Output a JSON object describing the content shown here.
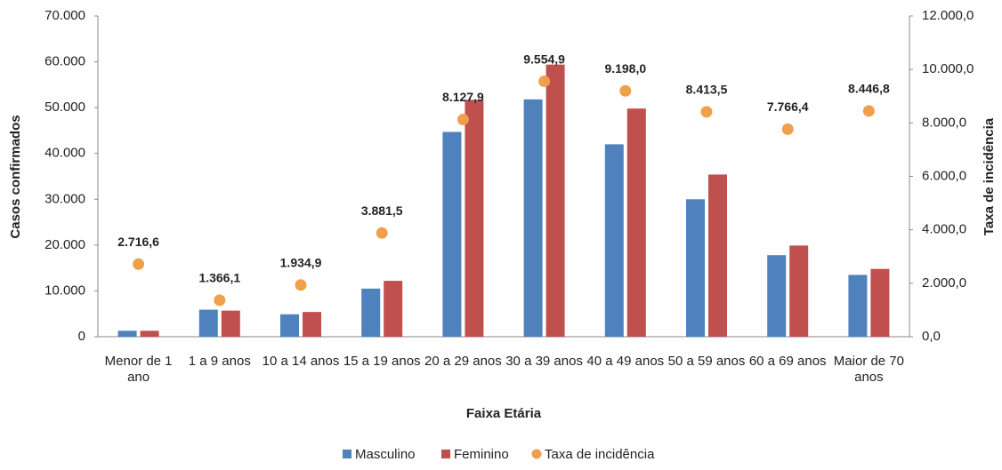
{
  "chart_data": {
    "type": "bar",
    "categories": [
      "Menor de 1 ano",
      "1 a 9 anos",
      "10 a 14 anos",
      "15 a 19 anos",
      "20 a 29 anos",
      "30 a 39 anos",
      "40 a 49 anos",
      "50 a 59 anos",
      "60 a 69 anos",
      "Maior de 70 anos"
    ],
    "series": [
      {
        "name": "Masculino",
        "type": "bar",
        "color": "#4f81bd",
        "values": [
          1300,
          5900,
          4900,
          10500,
          44700,
          51800,
          42000,
          30000,
          17800,
          13500
        ]
      },
      {
        "name": "Feminino",
        "type": "bar",
        "color": "#c0504d",
        "values": [
          1300,
          5700,
          5400,
          12200,
          51700,
          59400,
          49800,
          35400,
          19900,
          14800
        ]
      },
      {
        "name": "Taxa de incidência",
        "type": "scatter",
        "axis": "y2",
        "color": "#f0a04b",
        "values": [
          2716.6,
          1366.1,
          1934.9,
          3881.5,
          8127.9,
          9554.9,
          9198.0,
          8413.5,
          7766.4,
          8446.8
        ],
        "value_labels": [
          "2.716,6",
          "1.366,1",
          "1.934,9",
          "3.881,5",
          "8.127,9",
          "9.554,9",
          "9.198,0",
          "8.413,5",
          "7.766,4",
          "8.446,8"
        ]
      }
    ],
    "x_label": "Faixa Etária",
    "y_label": "Casos confirmados",
    "y2_label": "Taxa de incidência",
    "ylim": [
      0,
      70000
    ],
    "yticks": [
      0,
      {
        "value": 10000,
        "label": "10.000"
      },
      {
        "value": 20000,
        "label": "20.000"
      },
      {
        "value": 30000,
        "label": "30.000"
      },
      {
        "value": 40000,
        "label": "40.000"
      },
      {
        "value": 50000,
        "label": "50.000"
      },
      {
        "value": 60000,
        "label": "60.000"
      },
      {
        "value": 70000,
        "label": "70.000"
      }
    ],
    "y2lim": [
      0,
      12000
    ],
    "y2ticks": [
      {
        "value": 0,
        "label": "0,0"
      },
      {
        "value": 2000,
        "label": "2.000,0"
      },
      {
        "value": 4000,
        "label": "4.000,0"
      },
      {
        "value": 6000,
        "label": "6.000,0"
      },
      {
        "value": 8000,
        "label": "8.000,0"
      },
      {
        "value": 10000,
        "label": "10.000,0"
      },
      {
        "value": 12000,
        "label": "12.000,0"
      }
    ],
    "legend": "bottom"
  }
}
